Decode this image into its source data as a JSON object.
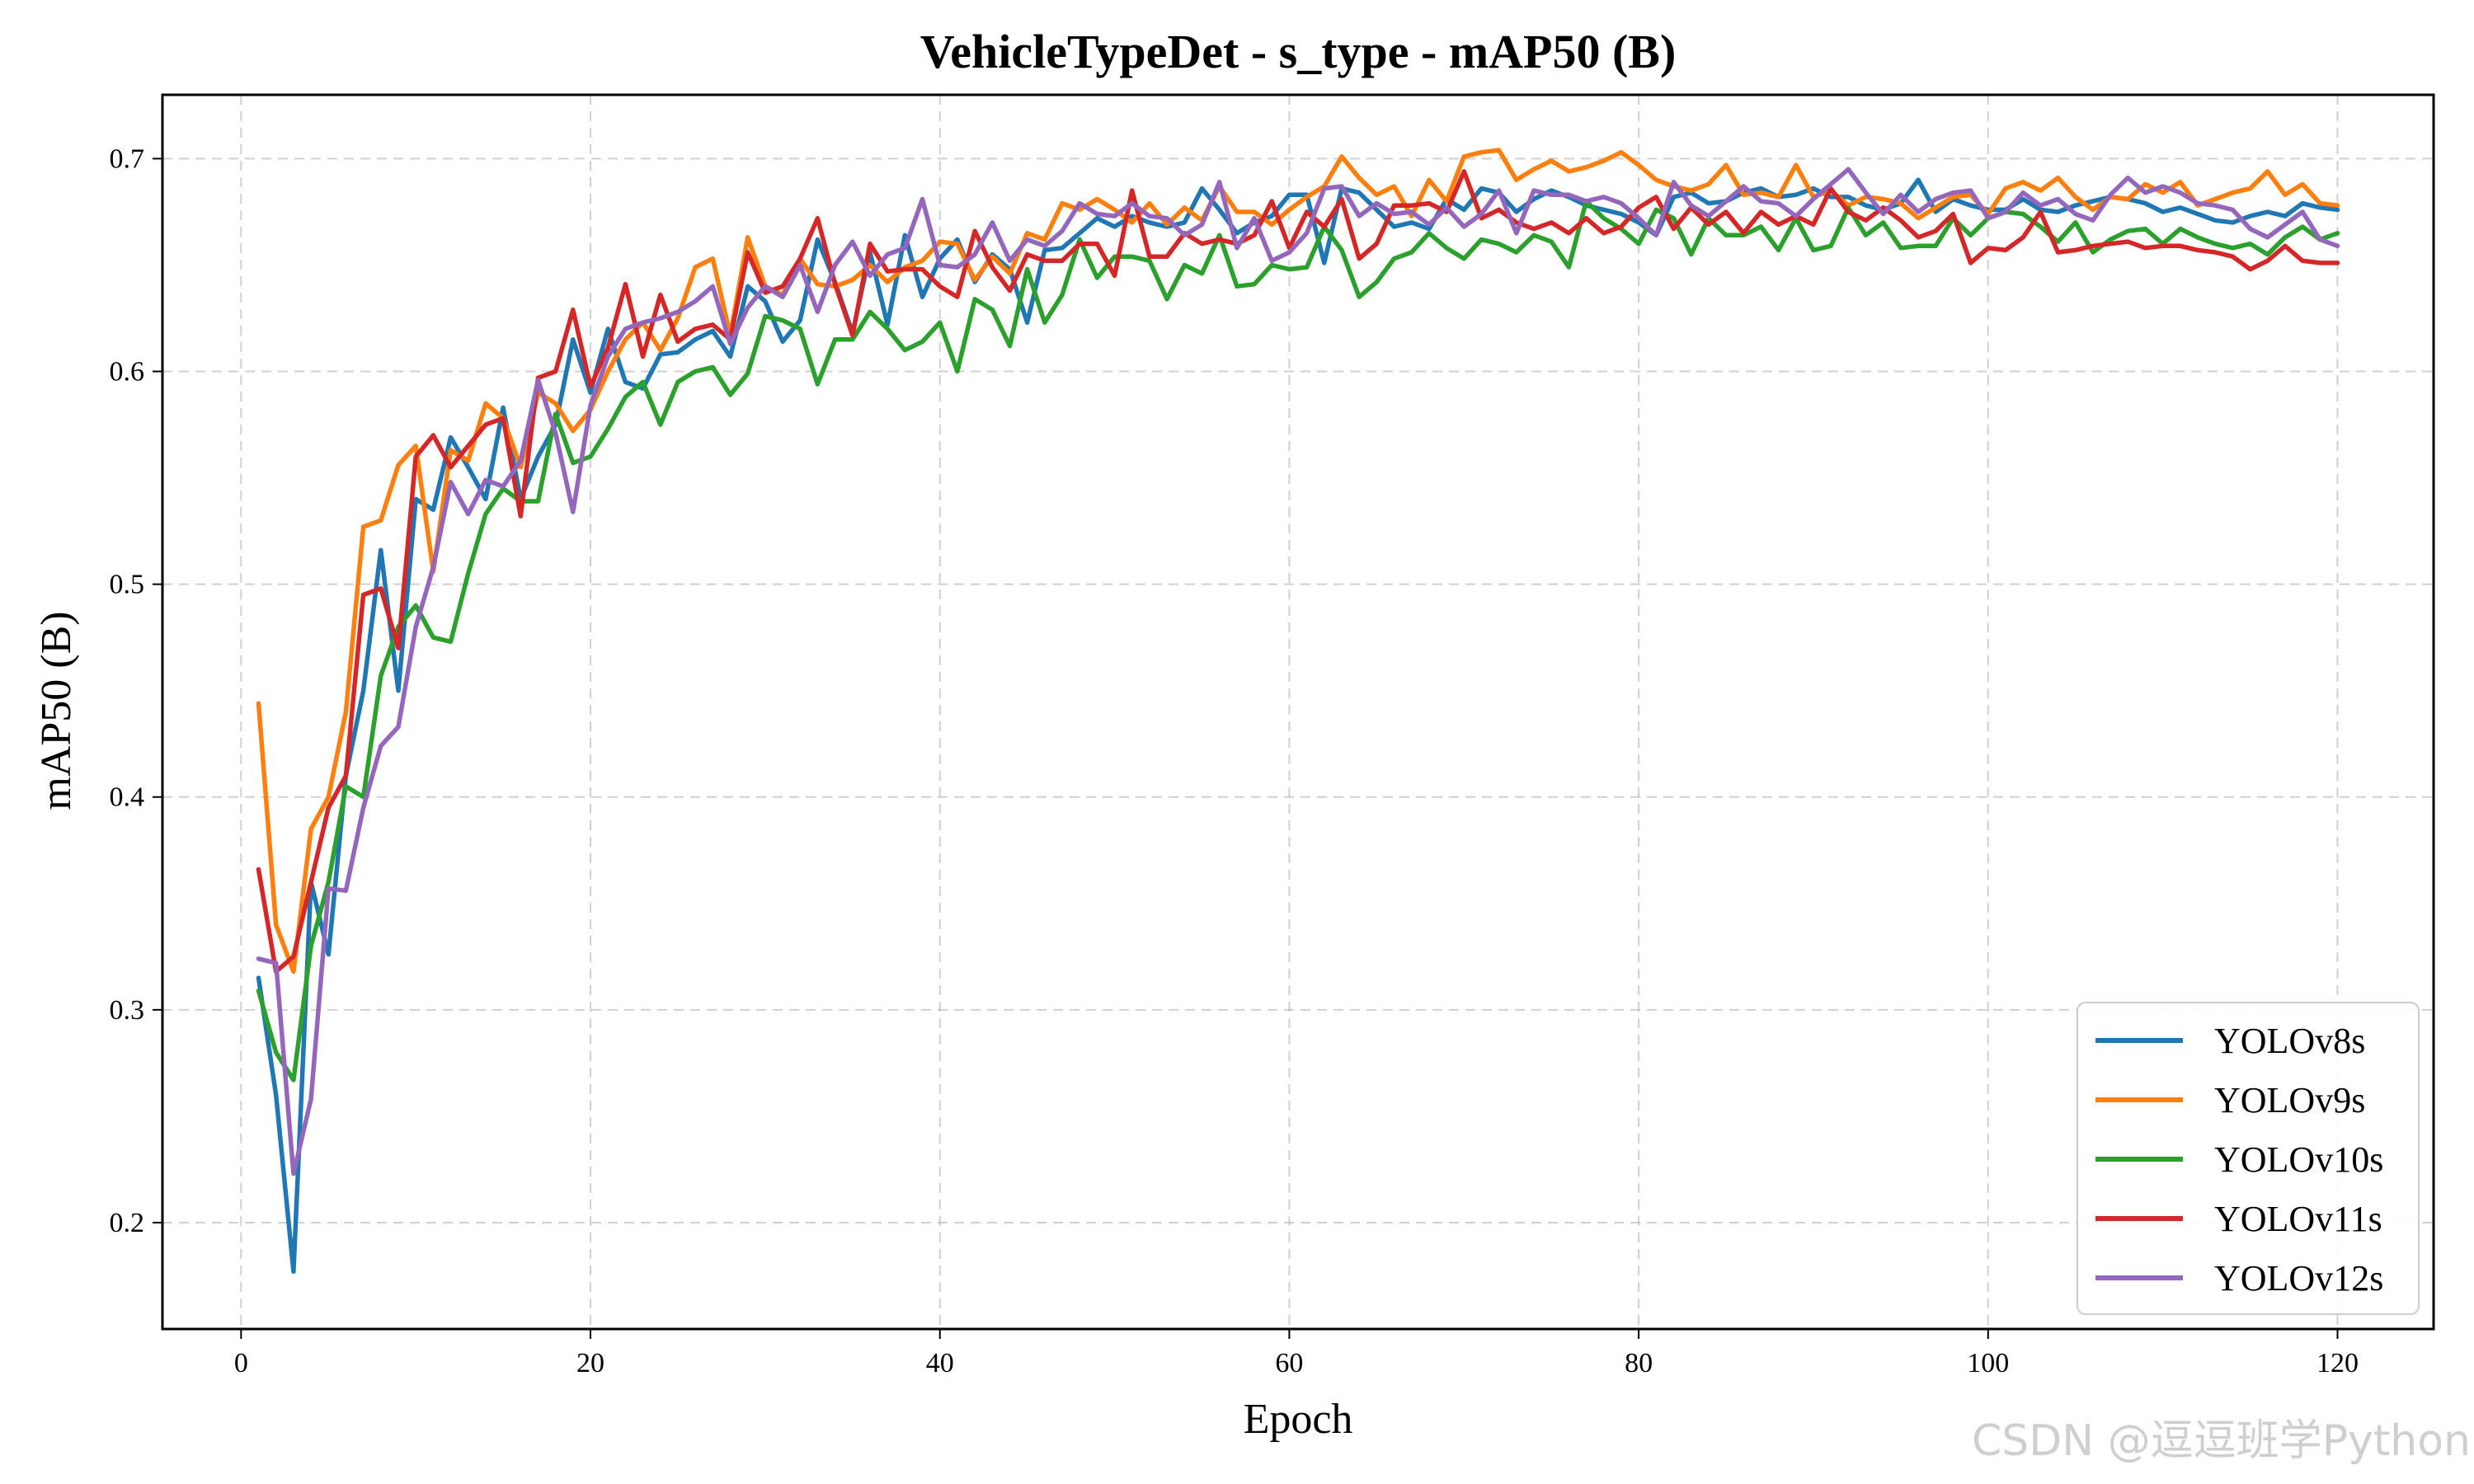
{
  "chart_data": {
    "type": "line",
    "title": "VehicleTypeDet - s_type - mAP50 (B)",
    "xlabel": "Epoch",
    "ylabel": "mAP50 (B)",
    "xlim": [
      -4.5,
      125.5
    ],
    "ylim": [
      0.15,
      0.73
    ],
    "xticks": [
      0,
      20,
      40,
      60,
      80,
      100,
      120
    ],
    "yticks": [
      0.2,
      0.3,
      0.4,
      0.5,
      0.6,
      0.7
    ],
    "grid": true,
    "legend_position": "bottom-right",
    "series": [
      {
        "name": "YOLOv8s",
        "color": "#1f77b4",
        "values": [
          0.315,
          0.26,
          0.177,
          0.36,
          0.326,
          0.41,
          0.45,
          0.516,
          0.45,
          0.54,
          0.535,
          0.569,
          0.555,
          0.54,
          0.583,
          0.54,
          0.56,
          0.575,
          0.615,
          0.59,
          0.62,
          0.595,
          0.592,
          0.608,
          0.609,
          0.615,
          0.619,
          0.607,
          0.64,
          0.633,
          0.614,
          0.624,
          0.662,
          0.642,
          0.618,
          0.656,
          0.622,
          0.664,
          0.635,
          0.653,
          0.662,
          0.642,
          0.655,
          0.648,
          0.623,
          0.657,
          0.658,
          0.665,
          0.672,
          0.668,
          0.673,
          0.67,
          0.668,
          0.67,
          0.686,
          0.676,
          0.665,
          0.67,
          0.673,
          0.683,
          0.683,
          0.651,
          0.686,
          0.684,
          0.676,
          0.668,
          0.67,
          0.667,
          0.681,
          0.676,
          0.686,
          0.684,
          0.675,
          0.681,
          0.685,
          0.682,
          0.678,
          0.676,
          0.674,
          0.67,
          0.664,
          0.682,
          0.684,
          0.679,
          0.68,
          0.684,
          0.686,
          0.682,
          0.683,
          0.686,
          0.682,
          0.682,
          0.678,
          0.676,
          0.679,
          0.69,
          0.675,
          0.681,
          0.678,
          0.676,
          0.676,
          0.681,
          0.676,
          0.675,
          0.678,
          0.68,
          0.682,
          0.681,
          0.679,
          0.675,
          0.677,
          0.674,
          0.671,
          0.67,
          0.673,
          0.675,
          0.673,
          0.679,
          0.677,
          0.676
        ]
      },
      {
        "name": "YOLOv9s",
        "color": "#ff7f0e",
        "values": [
          0.444,
          0.34,
          0.318,
          0.385,
          0.4,
          0.44,
          0.527,
          0.53,
          0.556,
          0.565,
          0.506,
          0.563,
          0.558,
          0.585,
          0.578,
          0.555,
          0.59,
          0.585,
          0.572,
          0.582,
          0.6,
          0.615,
          0.623,
          0.61,
          0.625,
          0.649,
          0.653,
          0.617,
          0.663,
          0.64,
          0.636,
          0.653,
          0.641,
          0.64,
          0.643,
          0.65,
          0.642,
          0.649,
          0.652,
          0.661,
          0.66,
          0.643,
          0.654,
          0.646,
          0.665,
          0.662,
          0.679,
          0.676,
          0.681,
          0.676,
          0.67,
          0.679,
          0.669,
          0.677,
          0.671,
          0.687,
          0.675,
          0.675,
          0.669,
          0.676,
          0.682,
          0.687,
          0.701,
          0.691,
          0.683,
          0.687,
          0.673,
          0.69,
          0.68,
          0.701,
          0.703,
          0.704,
          0.69,
          0.695,
          0.699,
          0.694,
          0.696,
          0.699,
          0.703,
          0.697,
          0.69,
          0.687,
          0.685,
          0.688,
          0.697,
          0.683,
          0.684,
          0.682,
          0.697,
          0.682,
          0.685,
          0.678,
          0.682,
          0.681,
          0.679,
          0.672,
          0.677,
          0.682,
          0.683,
          0.674,
          0.686,
          0.689,
          0.685,
          0.691,
          0.682,
          0.676,
          0.682,
          0.681,
          0.688,
          0.684,
          0.689,
          0.678,
          0.681,
          0.684,
          0.686,
          0.694,
          0.683,
          0.688,
          0.679,
          0.678
        ]
      },
      {
        "name": "YOLOv10s",
        "color": "#2ca02c",
        "values": [
          0.309,
          0.28,
          0.267,
          0.33,
          0.36,
          0.405,
          0.4,
          0.457,
          0.48,
          0.49,
          0.475,
          0.473,
          0.505,
          0.533,
          0.545,
          0.539,
          0.539,
          0.58,
          0.557,
          0.56,
          0.573,
          0.588,
          0.595,
          0.575,
          0.595,
          0.6,
          0.602,
          0.589,
          0.599,
          0.626,
          0.624,
          0.62,
          0.594,
          0.615,
          0.615,
          0.628,
          0.62,
          0.61,
          0.614,
          0.623,
          0.6,
          0.634,
          0.629,
          0.612,
          0.648,
          0.623,
          0.636,
          0.662,
          0.644,
          0.654,
          0.654,
          0.652,
          0.634,
          0.65,
          0.646,
          0.664,
          0.64,
          0.641,
          0.65,
          0.648,
          0.649,
          0.668,
          0.657,
          0.635,
          0.642,
          0.653,
          0.656,
          0.665,
          0.658,
          0.653,
          0.662,
          0.66,
          0.656,
          0.664,
          0.661,
          0.649,
          0.68,
          0.672,
          0.667,
          0.66,
          0.676,
          0.672,
          0.655,
          0.672,
          0.664,
          0.664,
          0.668,
          0.657,
          0.672,
          0.657,
          0.659,
          0.677,
          0.664,
          0.67,
          0.658,
          0.659,
          0.659,
          0.672,
          0.664,
          0.672,
          0.675,
          0.674,
          0.668,
          0.661,
          0.67,
          0.656,
          0.662,
          0.666,
          0.667,
          0.66,
          0.667,
          0.663,
          0.66,
          0.658,
          0.66,
          0.655,
          0.663,
          0.668,
          0.662,
          0.665
        ]
      },
      {
        "name": "YOLOv11s",
        "color": "#d62728",
        "values": [
          0.366,
          0.318,
          0.325,
          0.36,
          0.395,
          0.41,
          0.495,
          0.498,
          0.47,
          0.56,
          0.57,
          0.555,
          0.565,
          0.575,
          0.578,
          0.532,
          0.597,
          0.6,
          0.629,
          0.593,
          0.611,
          0.641,
          0.607,
          0.636,
          0.614,
          0.62,
          0.622,
          0.615,
          0.656,
          0.637,
          0.64,
          0.653,
          0.672,
          0.641,
          0.617,
          0.66,
          0.647,
          0.648,
          0.648,
          0.64,
          0.635,
          0.666,
          0.649,
          0.638,
          0.655,
          0.652,
          0.652,
          0.66,
          0.66,
          0.645,
          0.685,
          0.654,
          0.654,
          0.665,
          0.66,
          0.662,
          0.66,
          0.664,
          0.68,
          0.658,
          0.675,
          0.668,
          0.681,
          0.653,
          0.66,
          0.678,
          0.678,
          0.679,
          0.675,
          0.694,
          0.672,
          0.676,
          0.67,
          0.667,
          0.67,
          0.665,
          0.672,
          0.665,
          0.668,
          0.677,
          0.682,
          0.667,
          0.677,
          0.669,
          0.675,
          0.665,
          0.675,
          0.669,
          0.673,
          0.669,
          0.686,
          0.675,
          0.671,
          0.677,
          0.671,
          0.663,
          0.666,
          0.674,
          0.651,
          0.658,
          0.657,
          0.663,
          0.675,
          0.656,
          0.657,
          0.659,
          0.66,
          0.661,
          0.658,
          0.659,
          0.659,
          0.657,
          0.656,
          0.654,
          0.648,
          0.652,
          0.659,
          0.652,
          0.651,
          0.651
        ]
      },
      {
        "name": "YOLOv12s",
        "color": "#9467bd",
        "values": [
          0.324,
          0.322,
          0.223,
          0.258,
          0.357,
          0.356,
          0.395,
          0.424,
          0.433,
          0.48,
          0.508,
          0.548,
          0.533,
          0.549,
          0.546,
          0.558,
          0.596,
          0.571,
          0.534,
          0.584,
          0.607,
          0.62,
          0.623,
          0.625,
          0.628,
          0.633,
          0.64,
          0.613,
          0.63,
          0.64,
          0.635,
          0.65,
          0.628,
          0.65,
          0.661,
          0.645,
          0.655,
          0.658,
          0.681,
          0.65,
          0.649,
          0.655,
          0.67,
          0.652,
          0.662,
          0.659,
          0.666,
          0.679,
          0.674,
          0.673,
          0.679,
          0.673,
          0.672,
          0.664,
          0.669,
          0.689,
          0.658,
          0.672,
          0.652,
          0.656,
          0.665,
          0.686,
          0.687,
          0.673,
          0.679,
          0.674,
          0.675,
          0.669,
          0.677,
          0.668,
          0.674,
          0.685,
          0.665,
          0.685,
          0.683,
          0.683,
          0.68,
          0.682,
          0.679,
          0.672,
          0.664,
          0.689,
          0.678,
          0.673,
          0.68,
          0.687,
          0.68,
          0.679,
          0.673,
          0.681,
          0.688,
          0.695,
          0.684,
          0.674,
          0.683,
          0.675,
          0.681,
          0.684,
          0.685,
          0.672,
          0.675,
          0.684,
          0.678,
          0.681,
          0.674,
          0.671,
          0.683,
          0.691,
          0.684,
          0.687,
          0.684,
          0.679,
          0.678,
          0.676,
          0.667,
          0.663,
          0.669,
          0.675,
          0.662,
          0.659
        ]
      }
    ]
  },
  "watermark": "CSDN @逗逗班学Python"
}
